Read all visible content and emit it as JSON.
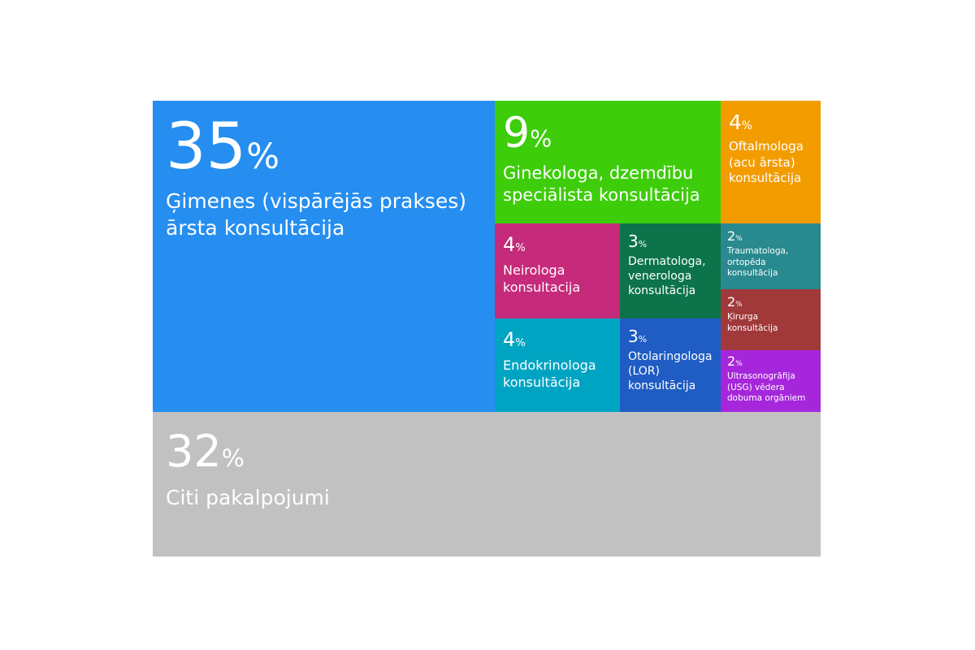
{
  "chart_data": {
    "type": "treemap",
    "unit": "%",
    "items": [
      {
        "value": 35,
        "label": "Ģimenes (vispārējās prakses)\nārsta konsultācija",
        "color": "#258EF0"
      },
      {
        "value": 9,
        "label": "Ginekologa, dzemdību\nspeciālista konsultācija",
        "color": "#3DCD0A"
      },
      {
        "value": 4,
        "label": "Oftalmologa\n(acu ārsta)\nkonsultācija",
        "color": "#F39C00"
      },
      {
        "value": 4,
        "label": "Neirologa\nkonsultacija",
        "color": "#C62A7A"
      },
      {
        "value": 3,
        "label": "Dermatologa,\nvenerologa\nkonsultācija",
        "color": "#0C734A"
      },
      {
        "value": 2,
        "label": "Traumatologa,\nortopēda\nkonsultācija",
        "color": "#288A8E"
      },
      {
        "value": 2,
        "label": "Ķirurga\nkonsultācija",
        "color": "#A1393B"
      },
      {
        "value": 4,
        "label": "Endokrinologa\nkonsultācija",
        "color": "#00A4C3"
      },
      {
        "value": 3,
        "label": "Otolaringologa\n(LOR)\nkonsultācija",
        "color": "#1F5CC3"
      },
      {
        "value": 2,
        "label": "Ultrasonogrāfija\n(USG) vēdera\ndobuma orgāniem",
        "color": "#A627DB"
      },
      {
        "value": 32,
        "label": "Citi pakalpojumi",
        "color": "#C1C1C1"
      }
    ]
  }
}
